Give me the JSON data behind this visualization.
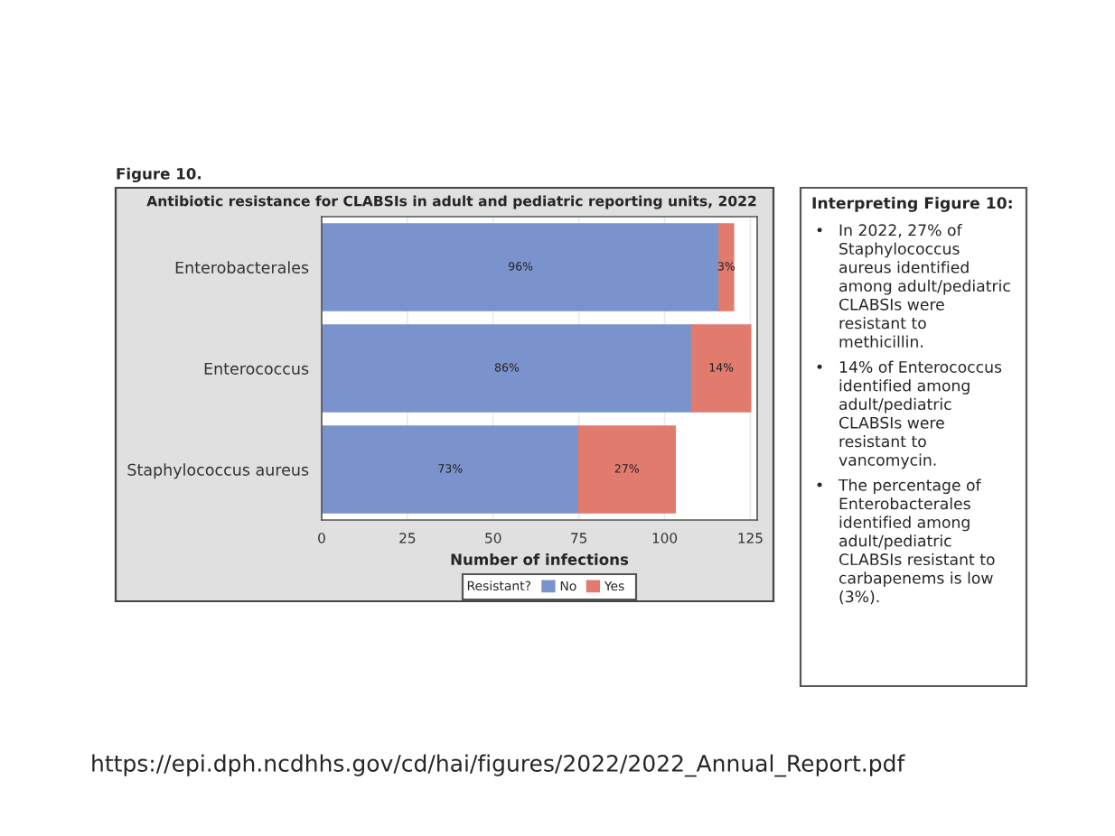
{
  "chart_data": {
    "type": "bar",
    "orientation": "horizontal",
    "stacked": true,
    "title": "Antibiotic resistance for CLABSIs in adult and pediatric reporting units, 2022",
    "categories": [
      "Enterobacterales",
      "Enterococcus",
      "Staphylococcus aureus"
    ],
    "series": [
      {
        "name": "No",
        "color": "#7b93cc",
        "values": [
          116,
          108,
          75
        ]
      },
      {
        "name": "Yes",
        "color": "#e07b6e",
        "values": [
          4,
          17,
          28
        ]
      }
    ],
    "xlabel": "Number of infections",
    "legend_title": "Resistant?",
    "legend": "bottom",
    "xlim": [
      0,
      127
    ],
    "xticks": [
      0,
      25,
      50,
      75,
      100,
      125
    ],
    "grid": "x",
    "annotations": [
      "Figure 10.",
      "Interpreting Figure 10:",
      "• In 2022, 27% of Staphylococcus aureus identified among adult/pediatric CLABSIs were resistant to methicillin.",
      "• 14% of Enterococcus identified among adult/pediatric CLABSIs were resistant to vancomycin.",
      "• The percentage of Enterobacterales identified among adult/pediatric CLABSIs resistant to carbapenems is low (3%).",
      "https://epi.dph.ncdhhs.gov/cd/hai/figures/2022/2022_Annual_Report.pdf",
      "96%",
      "86%",
      "73%",
      "3%",
      "14%",
      "27%"
    ]
  }
}
